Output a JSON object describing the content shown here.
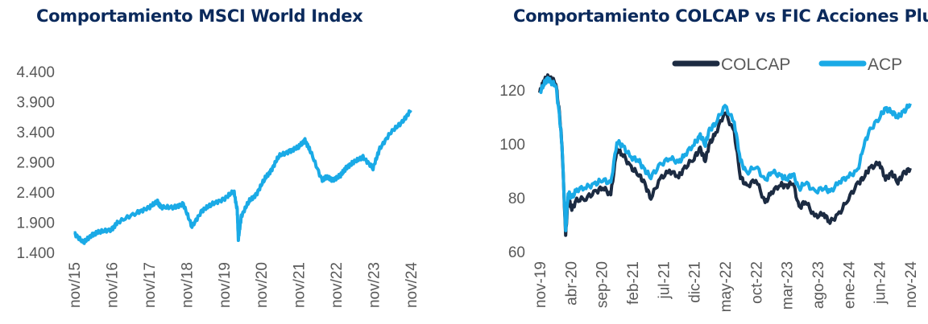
{
  "chart_data": [
    {
      "type": "line",
      "title": "Comportamiento MSCI World Index",
      "xlabel": "",
      "ylabel": "",
      "x_ticks": [
        "nov/15",
        "nov/16",
        "nov/17",
        "nov/18",
        "nov/19",
        "nov/20",
        "nov/21",
        "nov/22",
        "nov/23",
        "nov/24"
      ],
      "y_ticks": [
        "4.400",
        "3.900",
        "3.400",
        "2.900",
        "2.400",
        "1.900",
        "1.400"
      ],
      "ylim": [
        1400,
        4400
      ],
      "grid": false,
      "series": [
        {
          "color": "#1aaae6",
          "x": [
            2015.83,
            2016.08,
            2016.3,
            2016.5,
            2016.83,
            2017.0,
            2017.5,
            2017.83,
            2018.05,
            2018.15,
            2018.5,
            2018.75,
            2018.98,
            2019.25,
            2019.5,
            2019.83,
            2020.1,
            2020.19,
            2020.22,
            2020.3,
            2020.5,
            2020.7,
            2020.92,
            2021.1,
            2021.3,
            2021.6,
            2021.83,
            2022.0,
            2022.15,
            2022.45,
            2022.58,
            2022.75,
            2022.95,
            2023.1,
            2023.3,
            2023.55,
            2023.82,
            2024.0,
            2024.3,
            2024.6,
            2024.83
          ],
          "y": [
            1720,
            1560,
            1690,
            1740,
            1780,
            1900,
            2060,
            2140,
            2250,
            2150,
            2150,
            2200,
            1830,
            2090,
            2200,
            2280,
            2420,
            2100,
            1620,
            2000,
            2250,
            2360,
            2620,
            2760,
            3000,
            3080,
            3150,
            3260,
            3080,
            2600,
            2650,
            2600,
            2680,
            2800,
            2900,
            2980,
            2800,
            3120,
            3400,
            3560,
            3760
          ]
        }
      ]
    },
    {
      "type": "line",
      "title": "Comportamiento COLCAP vs FIC Acciones Plus",
      "xlabel": "",
      "ylabel": "",
      "x_ticks": [
        "nov-19",
        "abr-20",
        "sep-20",
        "feb-21",
        "jul-21",
        "dic-21",
        "may-22",
        "oct-22",
        "mar-23",
        "ago-23",
        "ene-24",
        "jun-24",
        "nov-24"
      ],
      "y_ticks": [
        "120",
        "100",
        "80",
        "60"
      ],
      "ylim": [
        60,
        130
      ],
      "legend_position": "top-right",
      "series": [
        {
          "name": "COLCAP",
          "color": "#1c2b42",
          "x": [
            0,
            0.6,
            1.2,
            1.8,
            2.6,
            3.2,
            3.6,
            4.2,
            4.6,
            5.2,
            6,
            7.5,
            9,
            10.2,
            11.5,
            12.5,
            13.5,
            14.8,
            16,
            17,
            18,
            19.5,
            21,
            22.5,
            23.5,
            25,
            26,
            26.8,
            27.5,
            28.5,
            30,
            31.5,
            32.5,
            33.5,
            35,
            36.5,
            37.5,
            39,
            40,
            41,
            42,
            43,
            44.5,
            46,
            47,
            48.5,
            50,
            51.5,
            52.5,
            53.5,
            55,
            56,
            57,
            58,
            59,
            60
          ],
          "y": [
            119,
            123,
            125,
            124,
            123,
            111,
            100,
            66,
            80,
            76,
            79,
            80,
            82,
            84,
            81,
            98,
            96,
            91,
            89,
            85,
            80,
            87,
            90,
            88,
            91,
            95,
            98,
            94,
            100,
            104,
            112,
            104,
            88,
            84,
            87,
            78,
            82,
            85,
            84,
            86,
            76,
            79,
            73,
            74,
            71,
            74,
            80,
            85,
            88,
            91,
            93,
            87,
            89,
            86,
            89,
            91
          ]
        },
        {
          "name": "ACP",
          "color": "#1aaae6",
          "x": [
            0,
            0.6,
            1.2,
            1.8,
            2.6,
            3.2,
            3.6,
            4.2,
            4.6,
            5.2,
            6,
            7.5,
            9,
            10.2,
            11.5,
            12.5,
            13.5,
            14.8,
            16,
            17,
            18,
            19.5,
            21,
            22.5,
            23.5,
            25,
            26,
            26.8,
            27.5,
            28.5,
            30,
            31.5,
            32.5,
            33.5,
            35,
            36.5,
            37.5,
            39,
            40,
            41,
            42,
            43,
            44.5,
            46,
            47,
            48.5,
            50,
            51.5,
            52.5,
            53.5,
            55,
            56,
            57,
            58,
            59,
            60
          ],
          "y": [
            119,
            122,
            124,
            123,
            122,
            110,
            100,
            67,
            82,
            80,
            83,
            84,
            85,
            87,
            85,
            101,
            99,
            95,
            94,
            90,
            88,
            92,
            95,
            93,
            96,
            100,
            103,
            100,
            105,
            108,
            114,
            108,
            94,
            89,
            92,
            86,
            90,
            88,
            87,
            89,
            83,
            86,
            82,
            84,
            82,
            86,
            88,
            90,
            100,
            105,
            110,
            113,
            112,
            110,
            112,
            115
          ]
        }
      ]
    }
  ]
}
